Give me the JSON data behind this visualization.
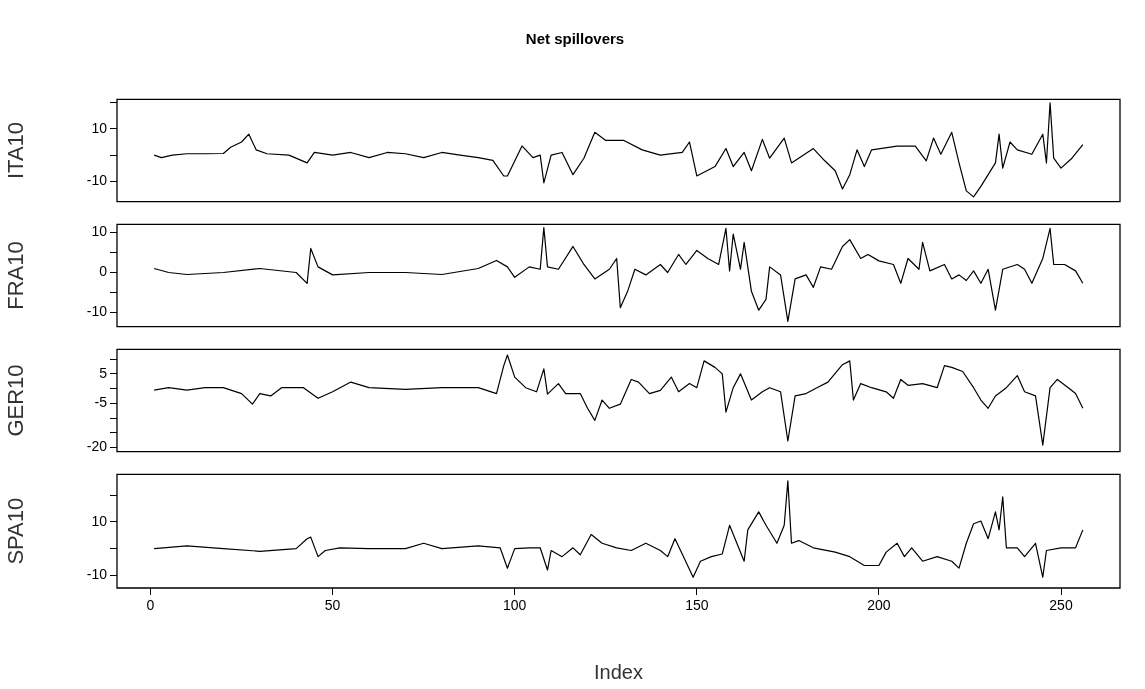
{
  "chart_data": [
    {
      "type": "line",
      "title": "Net spillovers",
      "ylabel": "ITA10",
      "tick_labels": "y",
      "grid": false,
      "marker": "none",
      "line_style": "solid",
      "legend": false,
      "xlim": [
        -9.2,
        266.2
      ],
      "ylim": [
        -17.8,
        21.3
      ],
      "yticks": [
        {
          "value": -10,
          "label": "-10"
        },
        {
          "value": 0,
          "label": null
        },
        {
          "value": 10,
          "label": "10"
        },
        {
          "value": 20,
          "label": null
        }
      ],
      "series": [
        {
          "color": "#000000",
          "x": [
            1,
            3,
            6,
            10,
            15,
            20,
            22,
            25,
            27,
            29,
            32,
            38,
            43,
            45,
            50,
            55,
            60,
            65,
            70,
            75,
            80,
            85,
            90,
            94,
            97,
            98,
            102,
            105,
            107,
            108,
            110,
            113,
            116,
            119,
            122,
            125,
            130,
            135,
            140,
            146,
            148,
            150,
            155,
            158,
            160,
            163,
            165,
            168,
            170,
            174,
            176,
            182,
            185,
            188,
            190,
            192,
            194,
            196,
            198,
            205,
            210,
            213,
            215,
            217,
            220,
            222,
            224,
            226,
            228,
            230,
            232,
            233,
            234,
            236,
            238,
            242,
            245,
            246,
            247,
            248,
            250,
            253,
            256
          ],
          "values": [
            0,
            -1,
            0,
            0.5,
            0.5,
            0.6,
            3,
            5,
            8,
            2,
            0.5,
            0,
            -3,
            1,
            0,
            1,
            -1,
            1,
            0.5,
            -1,
            1,
            0,
            -1,
            -2,
            -8,
            -8,
            3.5,
            -1,
            0,
            -10.6,
            0,
            1,
            -7.5,
            -1.2,
            8.7,
            5.6,
            5.6,
            2,
            0,
            1,
            5,
            -8,
            -4.4,
            2.5,
            -4.4,
            1,
            -6,
            6,
            -1.2,
            6.5,
            -3,
            2.5,
            -2,
            -6,
            -13,
            -7.5,
            2,
            -4.4,
            2,
            3.4,
            3.4,
            -2.2,
            6.5,
            0.3,
            8.7,
            -3,
            -13.7,
            -16,
            -12,
            -7.5,
            -3,
            8,
            -5,
            5,
            2,
            0.3,
            8,
            -3,
            20,
            -1.2,
            -5,
            -1.2,
            4
          ]
        }
      ]
    },
    {
      "type": "line",
      "ylabel": "FRA10",
      "tick_labels": "y",
      "grid": false,
      "marker": "none",
      "line_style": "solid",
      "legend": false,
      "xlim": [
        -9.2,
        266.2
      ],
      "ylim": [
        -13.5,
        12
      ],
      "yticks": [
        {
          "value": -10,
          "label": "-10"
        },
        {
          "value": -5,
          "label": null
        },
        {
          "value": 0,
          "label": "0"
        },
        {
          "value": 5,
          "label": null
        },
        {
          "value": 10,
          "label": "10"
        }
      ],
      "series": [
        {
          "color": "#000000",
          "x": [
            1,
            5,
            10,
            20,
            30,
            40,
            43,
            44,
            46,
            50,
            60,
            70,
            80,
            90,
            95,
            98,
            100,
            104,
            107,
            108,
            109,
            112,
            116,
            119,
            122,
            126,
            128,
            129,
            131,
            133,
            136,
            140,
            142,
            145,
            147,
            150,
            153,
            156,
            158,
            159,
            160,
            162,
            163,
            165,
            167,
            169,
            170,
            173,
            175,
            177,
            180,
            182,
            184,
            187,
            190,
            192,
            195,
            197,
            200,
            204,
            206,
            208,
            211,
            212,
            214,
            218,
            220,
            222,
            224,
            226,
            228,
            230,
            232,
            234,
            238,
            240,
            242,
            245,
            247,
            248,
            251,
            254,
            256
          ],
          "values": [
            1,
            0,
            -0.5,
            0,
            1,
            0,
            -2.7,
            6,
            1.4,
            -0.6,
            0,
            0,
            -0.5,
            1,
            3,
            1.4,
            -1.2,
            1.4,
            0.8,
            11.2,
            1.4,
            0.8,
            6.5,
            2,
            -1.6,
            0.8,
            3.5,
            -8.8,
            -4.7,
            0.8,
            -0.6,
            2,
            0,
            4.5,
            2,
            5.5,
            3.5,
            2,
            11,
            0.4,
            9.6,
            0.8,
            7.5,
            -4.7,
            -9.4,
            -6.7,
            1.4,
            -0.6,
            -12.2,
            -1.6,
            -0.6,
            -3.7,
            1.4,
            0.8,
            6.5,
            8.2,
            3.5,
            4.5,
            2.9,
            2,
            -2.7,
            3.5,
            0.8,
            7.5,
            0.4,
            2,
            -1.6,
            -0.6,
            -2,
            0.4,
            -2.7,
            0.8,
            -9.4,
            0.8,
            2,
            0.8,
            -2.7,
            3.5,
            11,
            2,
            2,
            0.4,
            -2.7
          ]
        }
      ]
    },
    {
      "type": "line",
      "ylabel": "GER10",
      "tick_labels": "y",
      "grid": false,
      "marker": "none",
      "line_style": "solid",
      "legend": false,
      "xlim": [
        -9.2,
        266.2
      ],
      "ylim": [
        -21.4,
        13.3
      ],
      "yticks": [
        {
          "value": -20,
          "label": "-20"
        },
        {
          "value": -15,
          "label": null
        },
        {
          "value": -10,
          "label": null
        },
        {
          "value": -5,
          "label": "-5"
        },
        {
          "value": 0,
          "label": null
        },
        {
          "value": 5,
          "label": "5"
        },
        {
          "value": 10,
          "label": null
        }
      ],
      "series": [
        {
          "color": "#000000",
          "x": [
            1,
            5,
            10,
            15,
            20,
            25,
            28,
            30,
            33,
            36,
            42,
            46,
            50,
            55,
            60,
            70,
            80,
            90,
            95,
            97,
            98,
            100,
            103,
            106,
            108,
            109,
            112,
            114,
            118,
            120,
            122,
            124,
            126,
            129,
            132,
            134,
            137,
            140,
            143,
            145,
            148,
            150,
            152,
            155,
            157,
            158,
            160,
            162,
            165,
            168,
            170,
            173,
            175,
            177,
            180,
            183,
            186,
            190,
            192,
            193,
            195,
            198,
            202,
            204,
            206,
            208,
            212,
            216,
            218,
            220,
            223,
            226,
            228,
            230,
            232,
            235,
            238,
            240,
            243,
            245,
            247,
            249,
            252,
            254,
            256
          ],
          "values": [
            -0.5,
            0.3,
            -0.5,
            0.3,
            0.3,
            -1.7,
            -5.3,
            -1.7,
            -2.5,
            0.3,
            0.3,
            -3.3,
            -1.1,
            2.2,
            0.3,
            -0.3,
            0.3,
            0.3,
            -1.7,
            7.8,
            11.4,
            3.9,
            0.3,
            -1.1,
            6.7,
            -1.9,
            1.7,
            -1.7,
            -1.7,
            -6.7,
            -10.8,
            -3.9,
            -6.7,
            -5.3,
            3.1,
            2.2,
            -1.7,
            -0.6,
            3.9,
            -1.1,
            1.7,
            0.3,
            9.4,
            7.2,
            5,
            -8,
            0.3,
            5,
            -3.9,
            -1.1,
            0.3,
            -1.1,
            -17.8,
            -2.5,
            -1.7,
            0.3,
            2.2,
            8.1,
            9.4,
            -3.9,
            1.7,
            0.3,
            -1.1,
            -3.3,
            3.1,
            1.1,
            1.7,
            0.3,
            7.8,
            7.2,
            5.8,
            0.3,
            -3.9,
            -6.7,
            -2.5,
            0.3,
            4.4,
            -1.1,
            -2.5,
            -19.2,
            0.3,
            3.1,
            0.3,
            -1.7,
            -6.7
          ]
        }
      ]
    },
    {
      "type": "line",
      "ylabel": "SPA10",
      "xlabel": "Index",
      "grid": false,
      "marker": "none",
      "line_style": "solid",
      "legend": false,
      "xlim": [
        -9.2,
        266.2
      ],
      "xticks": [
        0,
        50,
        100,
        150,
        200,
        250
      ],
      "ylim": [
        -14.7,
        27.7
      ],
      "yticks": [
        {
          "value": -10,
          "label": "-10"
        },
        {
          "value": 0,
          "label": null
        },
        {
          "value": 10,
          "label": "10"
        },
        {
          "value": 20,
          "label": null
        }
      ],
      "series": [
        {
          "color": "#000000",
          "x": [
            1,
            10,
            20,
            30,
            40,
            43,
            44,
            46,
            48,
            52,
            60,
            70,
            75,
            80,
            90,
            96,
            98,
            100,
            104,
            107,
            109,
            110,
            113,
            116,
            118,
            121,
            124,
            128,
            132,
            136,
            140,
            142,
            144,
            146,
            149,
            151,
            154,
            157,
            159,
            161,
            163,
            164,
            167,
            169,
            172,
            174,
            175,
            176,
            178,
            182,
            188,
            192,
            196,
            200,
            202,
            205,
            207,
            209,
            212,
            216,
            220,
            222,
            224,
            226,
            228,
            230,
            232,
            233,
            234,
            235,
            238,
            240,
            243,
            245,
            246,
            250,
            254,
            256
          ],
          "values": [
            0,
            1,
            0,
            -1,
            0,
            3.7,
            4.3,
            -3,
            -0.7,
            0.3,
            0,
            0,
            2,
            0,
            1,
            0.3,
            -7.3,
            0,
            0.3,
            0.3,
            -8,
            -0.7,
            -3,
            0.3,
            -2.3,
            5.3,
            2,
            0.3,
            -0.7,
            2,
            -0.7,
            -3,
            3.7,
            -2,
            -10.7,
            -4.7,
            -3,
            -2,
            8.7,
            2,
            -4.7,
            7,
            13.7,
            8.7,
            2,
            8.7,
            25.3,
            2,
            3,
            0.3,
            -1.3,
            -3,
            -6.3,
            -6.3,
            -1.3,
            2,
            -3,
            0.3,
            -4.7,
            -3,
            -4.7,
            -7.3,
            2,
            9.3,
            10.3,
            3.7,
            13.7,
            7,
            19.3,
            0.3,
            0.3,
            -3,
            2,
            -10.7,
            -0.7,
            0.3,
            0.3,
            7
          ]
        }
      ]
    }
  ]
}
